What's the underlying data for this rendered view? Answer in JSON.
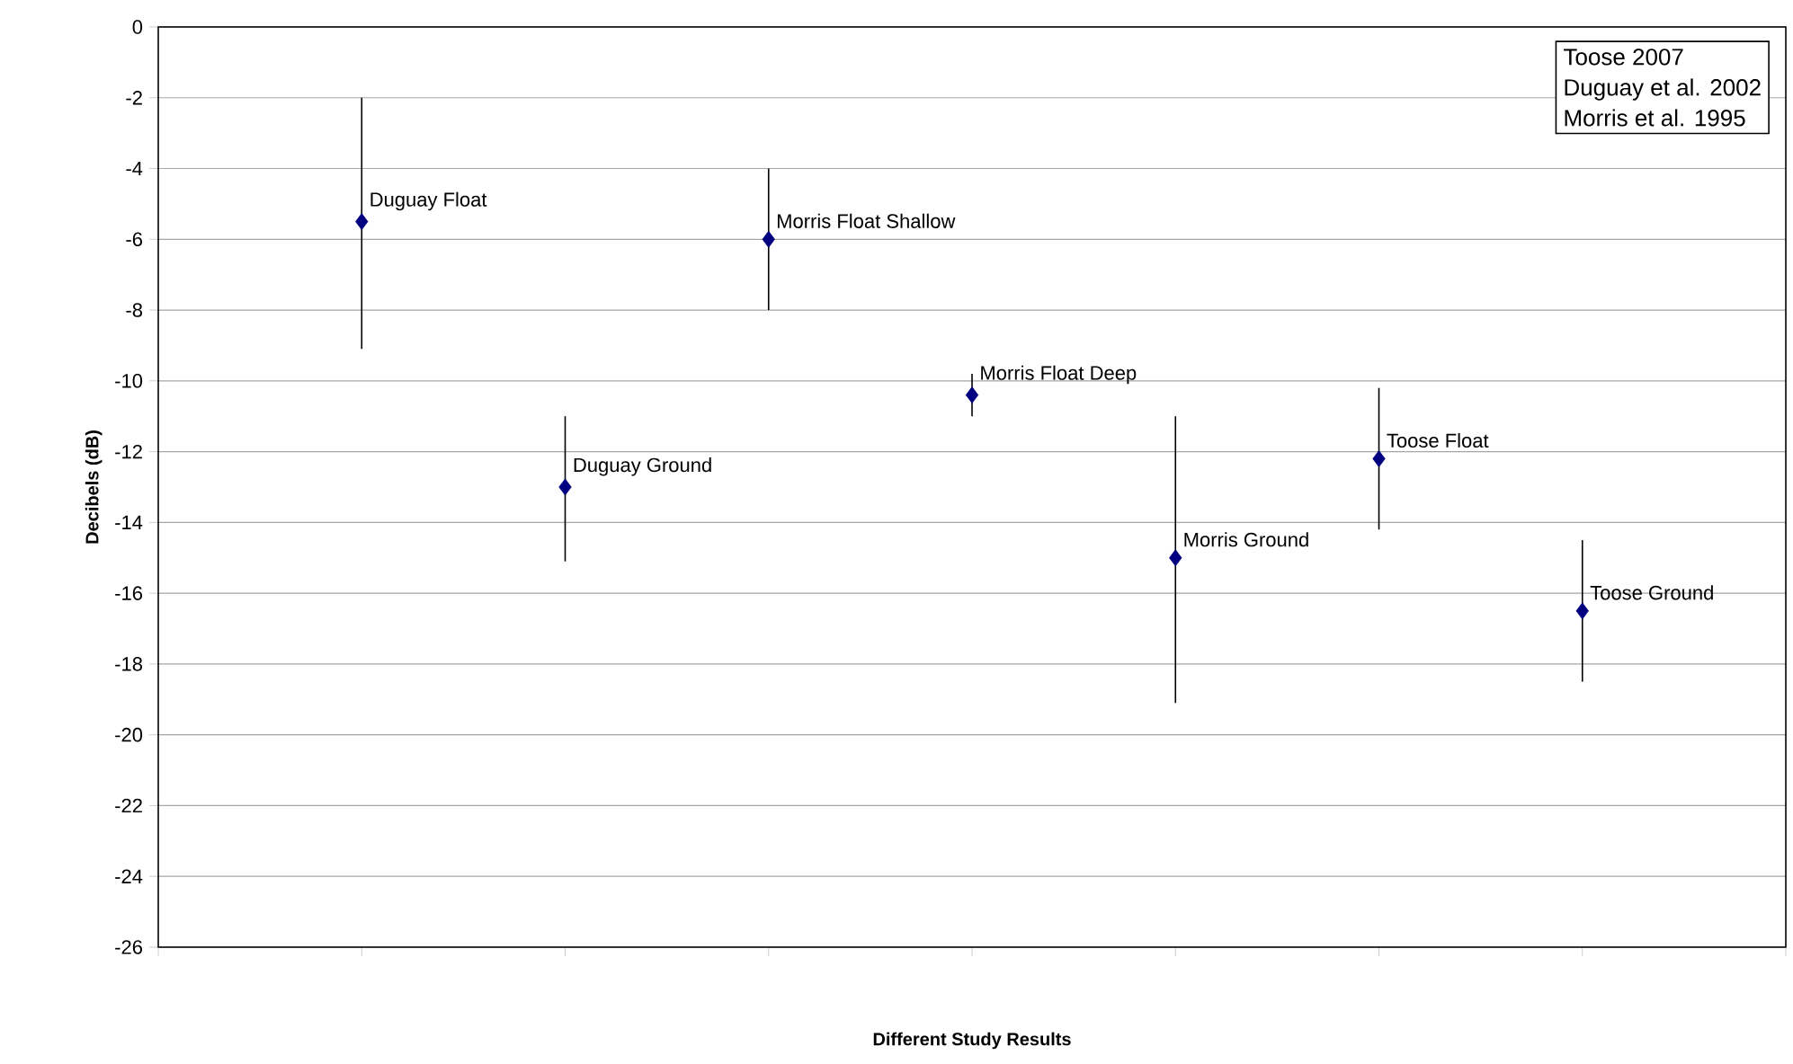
{
  "chart_data": {
    "type": "scatter",
    "xlabel": "Different Study Results",
    "ylabel": "Decibels (dB)",
    "categories": [
      null,
      null,
      null,
      null,
      null,
      null,
      null
    ],
    "values": [
      -5.5,
      -13,
      -6,
      -10.4,
      -15,
      -12.2,
      -16.5
    ],
    "errors": [
      [
        -9.1,
        -2
      ],
      [
        -15.1,
        -11
      ],
      [
        -8,
        -4
      ],
      [
        -11,
        -9.8
      ],
      [
        -19.1,
        -11
      ],
      [
        -14.2,
        -10.2
      ],
      [
        -18.5,
        -14.5
      ]
    ],
    "value_labels": [
      "Duguay Float",
      "Duguay Ground",
      "Morris Float Shallow",
      "Morris Float Deep",
      "Morris Ground",
      "Toose Float",
      "Toose Ground"
    ],
    "color": "#000080",
    "marker": "diamond",
    "ylim": [
      -26,
      0
    ],
    "yticks": [
      -26,
      -24,
      -22,
      -20,
      -18,
      -16,
      -14,
      -12,
      -10,
      -8,
      -6,
      -4,
      -2,
      0
    ],
    "grid": "y",
    "tick_labels": "y",
    "annotations": [
      "Toose 2007",
      "Duguay et al. 2002",
      "Morris et al. 1995"
    ]
  }
}
